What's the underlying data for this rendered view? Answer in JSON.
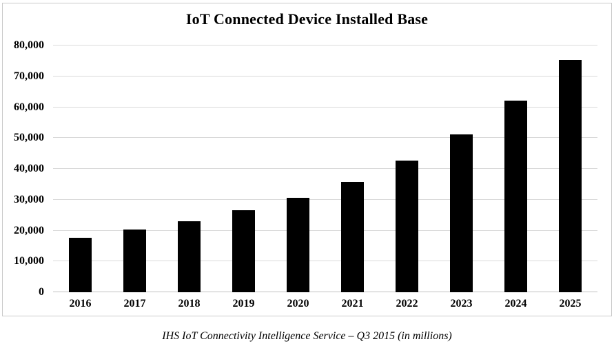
{
  "page": {
    "background": "#ffffff",
    "frame_border_color": "#c9c9c9"
  },
  "chart_data": {
    "type": "bar",
    "title": "IoT Connected Device Installed Base",
    "caption": "IHS IoT Connectivity Intelligence Service – Q3 2015 (in millions)",
    "categories": [
      "2016",
      "2017",
      "2018",
      "2019",
      "2020",
      "2021",
      "2022",
      "2023",
      "2024",
      "2025"
    ],
    "values": [
      17700,
      20400,
      23100,
      26700,
      30700,
      35800,
      42600,
      51100,
      62100,
      75400
    ],
    "xlabel": "",
    "ylabel": "",
    "ylim": [
      0,
      80000
    ],
    "ytick_step": 10000,
    "yticks": [
      {
        "value": 0,
        "label": "0"
      },
      {
        "value": 10000,
        "label": "10,000"
      },
      {
        "value": 20000,
        "label": "20,000"
      },
      {
        "value": 30000,
        "label": "30,000"
      },
      {
        "value": 40000,
        "label": "40,000"
      },
      {
        "value": 50000,
        "label": "50,000"
      },
      {
        "value": 60000,
        "label": "60,000"
      },
      {
        "value": 70000,
        "label": "70,000"
      },
      {
        "value": 80000,
        "label": "80,000"
      }
    ],
    "grid": true,
    "legend": false,
    "bar_color": "#000000",
    "gridline_color": "#d9d9d9",
    "axis_line_color": "#bfbfbf",
    "text_color": "#000000"
  }
}
